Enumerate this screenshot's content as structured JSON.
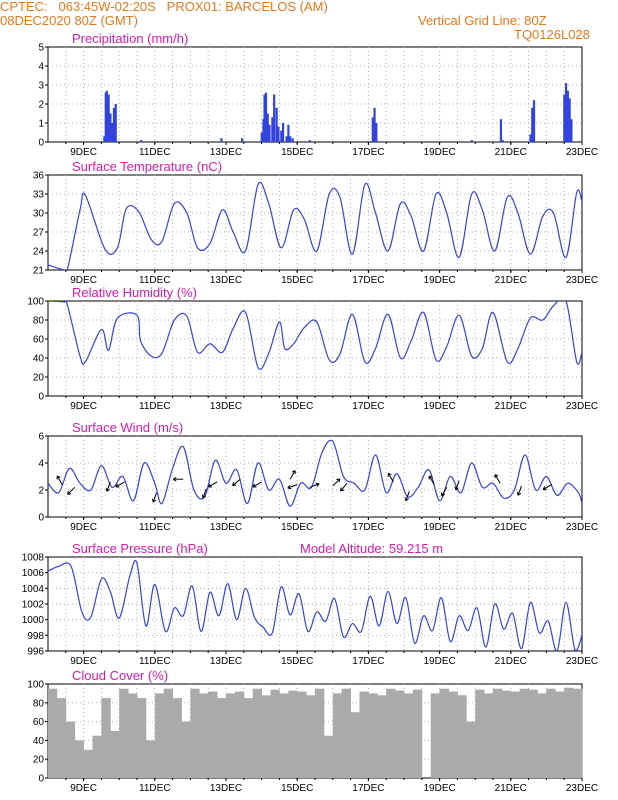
{
  "header": {
    "line1": "CPTEC:   063:45W-02:20S   PROX01: BARCELOS (AM)",
    "line2": "08DEC2020 80Z (GMT)",
    "vgrid": "Vertical Grid Line: 80Z",
    "code": "TQ0126L028"
  },
  "model_altitude_label": "Model Altitude: 59.215 m",
  "colors": {
    "line": "#3344dd",
    "bar": "#3344dd",
    "cloud": "#aaaaaa",
    "title": "#d81bb0",
    "header": "#e8781c"
  },
  "chart_data": [
    {
      "type": "bar",
      "title": "Precipitation (mm/h)",
      "ylim": [
        0,
        5
      ],
      "yticks": [
        0,
        1,
        2,
        3,
        4,
        5
      ],
      "xlim": [
        0,
        15
      ],
      "xtick_positions": [
        1,
        3,
        5,
        7,
        9,
        11,
        13,
        15
      ],
      "xtick_labels": [
        "9DEC",
        "11DEC",
        "13DEC",
        "15DEC",
        "17DEC",
        "19DEC",
        "21DEC",
        "23DEC"
      ],
      "x": [
        1.58,
        1.62,
        1.65,
        1.7,
        1.75,
        1.8,
        1.85,
        1.9,
        2.62,
        4.87,
        5.45,
        6.0,
        6.05,
        6.08,
        6.12,
        6.17,
        6.22,
        6.3,
        6.35,
        6.42,
        6.47,
        6.55,
        6.6,
        6.7,
        6.75,
        6.8,
        6.87,
        7.35,
        9.12,
        9.17,
        9.22,
        11.9,
        12.72,
        12.77,
        13.55,
        13.6,
        13.65,
        14.5,
        14.55,
        14.6,
        14.65,
        14.7
      ],
      "values": [
        0.3,
        2.6,
        2.7,
        2.5,
        1.5,
        1.0,
        1.8,
        2.0,
        0.1,
        0.2,
        0.2,
        0.5,
        1.2,
        2.5,
        2.6,
        1.5,
        0.9,
        1.3,
        2.5,
        1.8,
        0.8,
        0.6,
        1.0,
        0.3,
        0.9,
        0.3,
        0.2,
        0.1,
        1.3,
        1.8,
        1.0,
        0.1,
        1.2,
        0.1,
        0.4,
        1.8,
        2.2,
        2.5,
        3.1,
        2.7,
        2.3,
        1.2
      ]
    },
    {
      "type": "line",
      "title": "Surface Temperature (nC)",
      "ylim": [
        21,
        36
      ],
      "yticks": [
        21,
        24,
        27,
        30,
        33,
        36
      ],
      "xlim": [
        0,
        15
      ],
      "xtick_positions": [
        1,
        3,
        5,
        7,
        9,
        11,
        13,
        15
      ],
      "xtick_labels": [
        "9DEC",
        "11DEC",
        "13DEC",
        "15DEC",
        "17DEC",
        "19DEC",
        "21DEC",
        "23DEC"
      ],
      "x": [
        0,
        0.45,
        0.55,
        0.9,
        1.05,
        1.6,
        1.95,
        2.2,
        2.55,
        2.9,
        3.2,
        3.55,
        3.9,
        4.2,
        4.55,
        4.9,
        5.2,
        5.55,
        5.9,
        6.2,
        6.55,
        6.9,
        7.2,
        7.55,
        7.9,
        8.2,
        8.55,
        8.9,
        9.2,
        9.55,
        9.9,
        10.2,
        10.55,
        10.9,
        11.2,
        11.55,
        11.9,
        12.2,
        12.55,
        12.9,
        13.2,
        13.55,
        13.9,
        14.2,
        14.55,
        14.85,
        15.0
      ],
      "values": [
        21.8,
        21.0,
        21.2,
        30.5,
        32.8,
        24.3,
        24.5,
        30.7,
        30.2,
        25.8,
        25.5,
        31.5,
        30.0,
        24.5,
        25.2,
        30.5,
        27.0,
        24.0,
        34.5,
        31.5,
        24.5,
        30.5,
        29.0,
        24.0,
        33.0,
        32.5,
        23.5,
        34.5,
        30.0,
        24.0,
        31.5,
        29.5,
        24.0,
        33.0,
        30.0,
        23.0,
        33.0,
        30.5,
        24.0,
        32.5,
        30.0,
        23.5,
        29.5,
        30.0,
        23.0,
        33.2,
        31.8
      ]
    },
    {
      "type": "line",
      "title": "Relative Humidity (%)",
      "ylim": [
        0,
        100
      ],
      "yticks": [
        0,
        20,
        40,
        60,
        80,
        100
      ],
      "xlim": [
        0,
        15
      ],
      "xtick_positions": [
        1,
        3,
        5,
        7,
        9,
        11,
        13,
        15
      ],
      "xtick_labels": [
        "9DEC",
        "11DEC",
        "13DEC",
        "15DEC",
        "17DEC",
        "19DEC",
        "21DEC",
        "23DEC"
      ],
      "x": [
        0,
        0.45,
        0.55,
        0.9,
        1.05,
        1.5,
        1.7,
        1.95,
        2.5,
        2.6,
        2.9,
        3.2,
        3.55,
        3.9,
        4.2,
        4.55,
        4.9,
        5.2,
        5.55,
        5.9,
        6.2,
        6.5,
        6.65,
        6.9,
        7.2,
        7.55,
        7.9,
        8.2,
        8.55,
        8.9,
        9.2,
        9.55,
        9.9,
        10.2,
        10.55,
        10.9,
        11.2,
        11.55,
        11.9,
        12.2,
        12.5,
        12.9,
        13.2,
        13.55,
        13.9,
        14.2,
        14.55,
        14.85,
        15.0
      ],
      "values": [
        100,
        99,
        95,
        42,
        36,
        70,
        48,
        82,
        85,
        58,
        42,
        45,
        80,
        84,
        46,
        55,
        46,
        71,
        88,
        30,
        45,
        78,
        50,
        55,
        72,
        78,
        38,
        44,
        86,
        36,
        50,
        86,
        40,
        58,
        88,
        38,
        52,
        85,
        42,
        50,
        88,
        36,
        50,
        82,
        80,
        95,
        100,
        36,
        46
      ]
    },
    {
      "type": "line",
      "title": "Surface Wind (m/s)",
      "ylim": [
        0,
        6
      ],
      "yticks": [
        0,
        2,
        4,
        6
      ],
      "xlim": [
        0,
        15
      ],
      "xtick_positions": [
        1,
        3,
        5,
        7,
        9,
        11,
        13,
        15
      ],
      "xtick_labels": [
        "9DEC",
        "11DEC",
        "13DEC",
        "15DEC",
        "17DEC",
        "19DEC",
        "21DEC",
        "23DEC"
      ],
      "x": [
        0,
        0.3,
        0.6,
        0.9,
        1.2,
        1.5,
        1.8,
        2.1,
        2.4,
        2.7,
        3.0,
        3.2,
        3.5,
        3.8,
        4.1,
        4.4,
        4.7,
        5.0,
        5.3,
        5.6,
        5.9,
        6.2,
        6.5,
        6.8,
        7.1,
        7.4,
        7.7,
        8.0,
        8.3,
        8.6,
        8.9,
        9.2,
        9.5,
        9.8,
        10.1,
        10.4,
        10.7,
        11.0,
        11.3,
        11.6,
        11.9,
        12.2,
        12.5,
        12.8,
        13.1,
        13.4,
        13.7,
        14.0,
        14.3,
        14.6,
        14.9,
        15.0
      ],
      "values": [
        2.5,
        1.8,
        3.6,
        2.5,
        2.0,
        3.8,
        2.2,
        3.0,
        1.2,
        4.0,
        2.5,
        1.0,
        3.6,
        5.2,
        2.0,
        1.5,
        4.2,
        2.5,
        3.5,
        1.0,
        4.0,
        2.0,
        2.8,
        0.8,
        2.5,
        2.2,
        4.8,
        5.6,
        3.0,
        2.5,
        2.0,
        4.6,
        1.8,
        3.2,
        1.5,
        2.2,
        3.5,
        1.2,
        3.0,
        1.8,
        4.0,
        2.2,
        2.5,
        1.4,
        2.0,
        4.6,
        2.0,
        3.0,
        1.6,
        2.5,
        1.8,
        1.0
      ],
      "arrows": [
        {
          "x": 0.4,
          "y": 2.4,
          "dir_deg": 330
        },
        {
          "x": 0.75,
          "y": 2.2,
          "dir_deg": 225
        },
        {
          "x": 1.75,
          "y": 2.6,
          "dir_deg": 200
        },
        {
          "x": 2.15,
          "y": 2.6,
          "dir_deg": 240
        },
        {
          "x": 3.05,
          "y": 1.8,
          "dir_deg": 200
        },
        {
          "x": 3.8,
          "y": 2.8,
          "dir_deg": 270
        },
        {
          "x": 4.45,
          "y": 2.1,
          "dir_deg": 200
        },
        {
          "x": 4.75,
          "y": 2.6,
          "dir_deg": 240
        },
        {
          "x": 5.4,
          "y": 2.8,
          "dir_deg": 230
        },
        {
          "x": 6.0,
          "y": 2.6,
          "dir_deg": 240
        },
        {
          "x": 6.8,
          "y": 2.8,
          "dir_deg": 30
        },
        {
          "x": 7.0,
          "y": 2.4,
          "dir_deg": 250
        },
        {
          "x": 7.35,
          "y": 2.2,
          "dir_deg": 70
        },
        {
          "x": 8.0,
          "y": 2.3,
          "dir_deg": 45
        },
        {
          "x": 8.4,
          "y": 2.5,
          "dir_deg": 220
        },
        {
          "x": 9.7,
          "y": 2.6,
          "dir_deg": 330
        },
        {
          "x": 10.15,
          "y": 1.9,
          "dir_deg": 200
        },
        {
          "x": 10.85,
          "y": 2.4,
          "dir_deg": 330
        },
        {
          "x": 11.2,
          "y": 2.2,
          "dir_deg": 210
        },
        {
          "x": 11.55,
          "y": 2.7,
          "dir_deg": 200
        },
        {
          "x": 12.7,
          "y": 2.5,
          "dir_deg": 330
        },
        {
          "x": 13.3,
          "y": 2.3,
          "dir_deg": 200
        },
        {
          "x": 14.15,
          "y": 2.4,
          "dir_deg": 240
        }
      ]
    },
    {
      "type": "line",
      "title": "Surface Pressure (hPa)",
      "ylim": [
        996,
        1008
      ],
      "yticks": [
        996,
        998,
        1000,
        1002,
        1004,
        1006,
        1008
      ],
      "xlim": [
        0,
        15
      ],
      "xtick_positions": [
        1,
        3,
        5,
        7,
        9,
        11,
        13,
        15
      ],
      "xtick_labels": [
        "9DEC",
        "11DEC",
        "13DEC",
        "15DEC",
        "17DEC",
        "19DEC",
        "21DEC",
        "23DEC"
      ],
      "x": [
        0,
        0.3,
        0.65,
        0.95,
        1.2,
        1.5,
        1.75,
        2.0,
        2.3,
        2.5,
        2.75,
        3.0,
        3.3,
        3.55,
        3.8,
        4.05,
        4.3,
        4.55,
        4.8,
        5.05,
        5.3,
        5.55,
        5.8,
        6.05,
        6.3,
        6.55,
        6.8,
        7.05,
        7.3,
        7.55,
        7.8,
        8.05,
        8.3,
        8.55,
        8.8,
        9.05,
        9.3,
        9.55,
        9.8,
        10.05,
        10.3,
        10.55,
        10.8,
        11.05,
        11.3,
        11.55,
        11.8,
        12.05,
        12.3,
        12.55,
        12.8,
        13.05,
        13.3,
        13.55,
        13.8,
        14.05,
        14.3,
        14.55,
        14.8,
        15.0
      ],
      "values": [
        1006.2,
        1006.8,
        1006.8,
        1001,
        1000.3,
        1005.2,
        1003.6,
        1000.2,
        1005.6,
        1007.2,
        999.2,
        1004.5,
        998.5,
        1001.5,
        1000.5,
        1004.3,
        998.5,
        1003.5,
        1000.5,
        1004.6,
        1000,
        1004,
        1000.3,
        999,
        998.3,
        1004.2,
        1000.6,
        1003.3,
        998.5,
        1001,
        999.8,
        1002.7,
        997.8,
        999.5,
        998.5,
        1003,
        999.2,
        1003.6,
        999.5,
        1002.8,
        997,
        1000.5,
        998.6,
        1002.8,
        997.2,
        1000.5,
        998.6,
        1001.5,
        996.5,
        1002,
        998.8,
        1000.8,
        996.3,
        1002.2,
        998.3,
        999.8,
        996,
        1002.2,
        996.2,
        998
      ]
    },
    {
      "type": "bar",
      "title": "Cloud Cover (%)",
      "ylim": [
        0,
        100
      ],
      "yticks": [
        0,
        20,
        40,
        60,
        80,
        100
      ],
      "xlim": [
        0,
        15
      ],
      "xtick_positions": [
        1,
        3,
        5,
        7,
        9,
        11,
        13,
        15
      ],
      "xtick_labels": [
        "9DEC",
        "11DEC",
        "13DEC",
        "15DEC",
        "17DEC",
        "19DEC",
        "21DEC",
        "23DEC"
      ],
      "x": [
        0.0,
        0.25,
        0.5,
        0.75,
        1.0,
        1.25,
        1.5,
        1.75,
        2.0,
        2.25,
        2.5,
        2.75,
        3.0,
        3.25,
        3.5,
        3.75,
        4.0,
        4.25,
        4.5,
        4.75,
        5.0,
        5.25,
        5.5,
        5.75,
        6.0,
        6.25,
        6.5,
        6.75,
        7.0,
        7.25,
        7.5,
        7.75,
        8.0,
        8.25,
        8.5,
        8.75,
        9.0,
        9.25,
        9.5,
        9.75,
        10.0,
        10.25,
        10.5,
        10.75,
        11.0,
        11.25,
        11.5,
        11.75,
        12.0,
        12.25,
        12.5,
        12.75,
        13.0,
        13.25,
        13.5,
        13.75,
        14.0,
        14.25,
        14.5,
        14.75
      ],
      "values": [
        95,
        85,
        60,
        40,
        30,
        45,
        85,
        50,
        95,
        90,
        85,
        40,
        90,
        95,
        85,
        60,
        95,
        90,
        92,
        85,
        90,
        92,
        85,
        95,
        88,
        94,
        90,
        93,
        92,
        88,
        95,
        45,
        90,
        95,
        70,
        92,
        90,
        88,
        95,
        93,
        90,
        94,
        0,
        90,
        95,
        92,
        88,
        60,
        94,
        90,
        95,
        93,
        92,
        95,
        94,
        90,
        95,
        92,
        96,
        95
      ]
    }
  ]
}
